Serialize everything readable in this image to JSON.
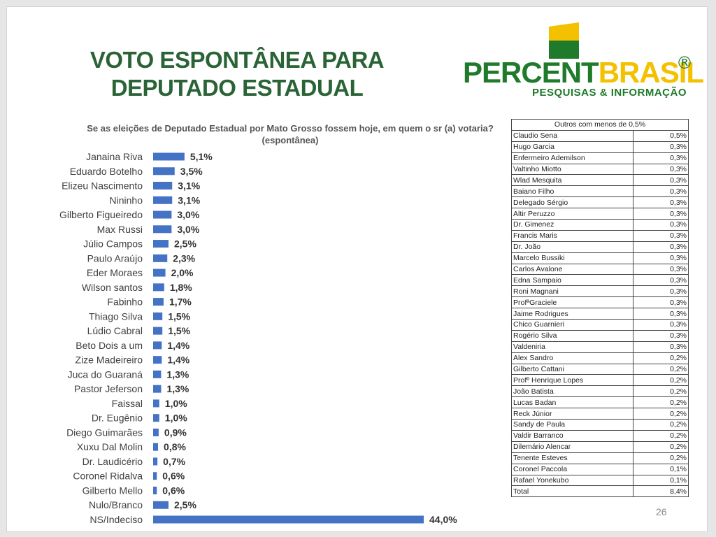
{
  "title": "VOTO ESPONTÂNEA PARA DEPUTADO ESTADUAL",
  "logo": {
    "word_part1": "PERCENT",
    "word_part2": "BRASIL",
    "registered": "®",
    "subtitle": "PESQUISAS & INFORMAÇÃO",
    "colors": {
      "green": "#1f7a2b",
      "yellow": "#f3c100"
    }
  },
  "question": "Se as eleições de Deputado Estadual por Mato Grosso fossem hoje, em quem o sr (a) votaria? (espontânea)",
  "chart_data": {
    "type": "bar",
    "orientation": "horizontal",
    "title": "Se as eleições de Deputado Estadual por Mato Grosso fossem hoje, em quem o sr (a) votaria? (espontânea)",
    "categories": [
      "Janaina Riva",
      "Eduardo Botelho",
      "Elizeu Nascimento",
      "Nininho",
      "Gilberto Figueiredo",
      "Max Russi",
      "Júlio Campos",
      "Paulo Araújo",
      "Eder Moraes",
      "Wilson santos",
      "Fabinho",
      "Thiago Silva",
      "Lúdio Cabral",
      "Beto Dois a um",
      "Zize Madeireiro",
      "Juca do Guaraná",
      "Pastor Jeferson",
      "Faissal",
      "Dr. Eugênio",
      "Diego Guimarães",
      "Xuxu Dal Molin",
      "Dr. Laudicério",
      "Coronel Ridalva",
      "Gilberto Mello",
      "Nulo/Branco",
      "NS/Indeciso"
    ],
    "values": [
      5.1,
      3.5,
      3.1,
      3.1,
      3.0,
      3.0,
      2.5,
      2.3,
      2.0,
      1.8,
      1.7,
      1.5,
      1.5,
      1.4,
      1.4,
      1.3,
      1.3,
      1.0,
      1.0,
      0.9,
      0.8,
      0.7,
      0.6,
      0.6,
      2.5,
      44.0
    ],
    "labels": [
      "5,1%",
      "3,5%",
      "3,1%",
      "3,1%",
      "3,0%",
      "3,0%",
      "2,5%",
      "2,3%",
      "2,0%",
      "1,8%",
      "1,7%",
      "1,5%",
      "1,5%",
      "1,4%",
      "1,4%",
      "1,3%",
      "1,3%",
      "1,0%",
      "1,0%",
      "0,9%",
      "0,8%",
      "0,7%",
      "0,6%",
      "0,6%",
      "2,5%",
      "44,0%"
    ],
    "xlim": [
      0,
      44.0
    ],
    "bar_color": "#4472c4",
    "grid": false,
    "legend": "none"
  },
  "others_table": {
    "header": "Outros com menos de 0,5%",
    "rows": [
      [
        "Claudio Sena",
        "0,5%"
      ],
      [
        "Hugo Garcia",
        "0,3%"
      ],
      [
        "Enfermeiro Ademilson",
        "0,3%"
      ],
      [
        "Valtinho Miotto",
        "0,3%"
      ],
      [
        "Wlad Mesquita",
        "0,3%"
      ],
      [
        "Baiano Filho",
        "0,3%"
      ],
      [
        "Delegado Sérgio",
        "0,3%"
      ],
      [
        "Altir Peruzzo",
        "0,3%"
      ],
      [
        "Dr. Gimenez",
        "0,3%"
      ],
      [
        "Francis Maris",
        "0,3%"
      ],
      [
        "Dr. João",
        "0,3%"
      ],
      [
        "Marcelo Bussiki",
        "0,3%"
      ],
      [
        "Carlos Avalone",
        "0,3%"
      ],
      [
        "Edna Sampaio",
        "0,3%"
      ],
      [
        "Roni Magnani",
        "0,3%"
      ],
      [
        "ProfªGraciele",
        "0,3%"
      ],
      [
        "Jaime Rodrigues",
        "0,3%"
      ],
      [
        "Chico Guarnieri",
        "0,3%"
      ],
      [
        "Rogério Silva",
        "0,3%"
      ],
      [
        "Valdeniria",
        "0,3%"
      ],
      [
        "Alex Sandro",
        "0,2%"
      ],
      [
        "Gilberto Cattani",
        "0,2%"
      ],
      [
        "Profº Henrique Lopes",
        "0,2%"
      ],
      [
        "João Batista",
        "0,2%"
      ],
      [
        "Lucas Badan",
        "0,2%"
      ],
      [
        "Reck Júnior",
        "0,2%"
      ],
      [
        "Sandy de Paula",
        "0,2%"
      ],
      [
        "Valdir Barranco",
        "0,2%"
      ],
      [
        "Dilemário Alencar",
        "0,2%"
      ],
      [
        "Tenente Esteves",
        "0,2%"
      ],
      [
        "Coronel Paccola",
        "0,1%"
      ],
      [
        "Rafael Yonekubo",
        "0,1%"
      ],
      [
        "Total",
        "8,4%"
      ]
    ]
  },
  "page_number": "26"
}
